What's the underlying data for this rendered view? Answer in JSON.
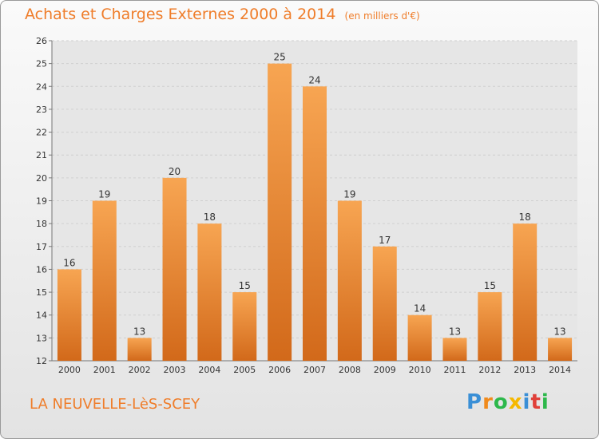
{
  "title": {
    "main": "Achats et Charges Externes 2000 à 2014",
    "unit": "(en milliers d'€)"
  },
  "commune": "LA NEUVELLE-LèS-SCEY",
  "logo": {
    "text": "Proxiti",
    "letters": [
      {
        "char": "P",
        "color": "#3a8fd6"
      },
      {
        "char": "r",
        "color": "#f08a1c"
      },
      {
        "char": "o",
        "color": "#2db84b"
      },
      {
        "char": "x",
        "color": "#f5b800"
      },
      {
        "char": "i",
        "color": "#3a8fd6"
      },
      {
        "char": "t",
        "color": "#e0403a"
      },
      {
        "char": "i",
        "color": "#2db84b"
      }
    ]
  },
  "colors": {
    "accent": "#ef7d2a",
    "bar_top": "#f7a552",
    "bar_bottom": "#d2691a",
    "grid": "#cfcfcf",
    "plot_bg": "#e6e6e6"
  },
  "chart_data": {
    "type": "bar",
    "title": "Achats et Charges Externes 2000 à 2014",
    "subtitle": "(en milliers d'€)",
    "xlabel": "",
    "ylabel": "",
    "categories": [
      "2000",
      "2001",
      "2002",
      "2003",
      "2004",
      "2005",
      "2006",
      "2007",
      "2008",
      "2009",
      "2010",
      "2011",
      "2012",
      "2013",
      "2014"
    ],
    "values": [
      16,
      19,
      13,
      20,
      18,
      15,
      25,
      24,
      19,
      17,
      14,
      13,
      15,
      18,
      13
    ],
    "ylim": [
      12,
      26
    ],
    "yticks": [
      12,
      13,
      14,
      15,
      16,
      17,
      18,
      19,
      20,
      21,
      22,
      23,
      24,
      25,
      26
    ],
    "grid": true,
    "data_labels": true
  }
}
